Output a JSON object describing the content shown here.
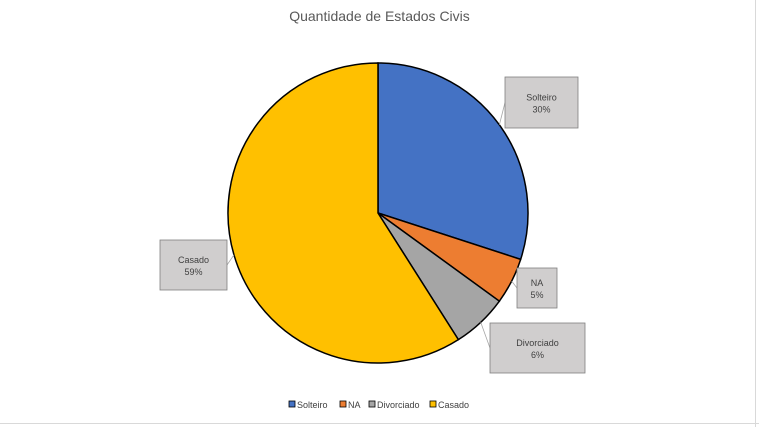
{
  "chart_data": {
    "type": "pie",
    "title": "Quantidade de Estados Civis",
    "categories": [
      "Solteiro",
      "NA",
      "Divorciado",
      "Casado"
    ],
    "values": [
      30,
      5,
      6,
      59
    ],
    "value_format": "percent",
    "colors": [
      "#4472c4",
      "#ed7d31",
      "#a5a5a5",
      "#ffc000"
    ],
    "legend_position": "bottom"
  }
}
